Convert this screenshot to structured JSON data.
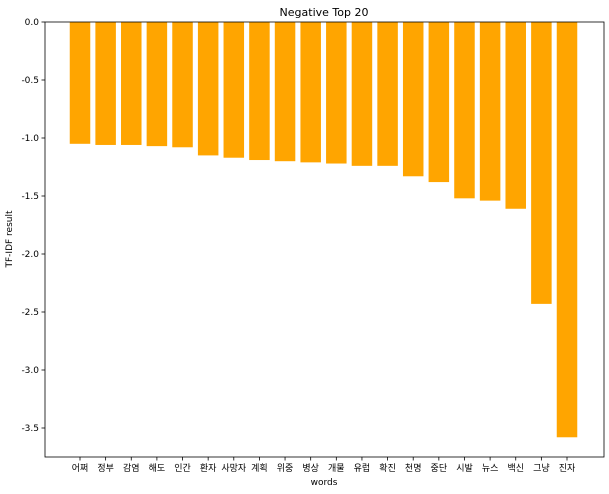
{
  "chart_data": {
    "type": "bar",
    "title": "Negative Top 20",
    "xlabel": "words",
    "ylabel": "TF-IDF result",
    "categories": [
      "어쩌",
      "정부",
      "감염",
      "해도",
      "인간",
      "환자",
      "사망자",
      "계획",
      "위중",
      "병상",
      "개물",
      "유럽",
      "확진",
      "천명",
      "중단",
      "시발",
      "뉴스",
      "백신",
      "그냥",
      "진자"
    ],
    "values": [
      -1.05,
      -1.06,
      -1.06,
      -1.07,
      -1.08,
      -1.15,
      -1.17,
      -1.19,
      -1.2,
      -1.21,
      -1.22,
      -1.24,
      -1.24,
      -1.33,
      -1.38,
      -1.52,
      -1.54,
      -1.61,
      -2.43,
      -3.58
    ],
    "ylim": [
      -3.75,
      0.0
    ],
    "yticks": [
      0.0,
      -0.5,
      -1.0,
      -1.5,
      -2.0,
      -2.5,
      -3.0,
      -3.5
    ],
    "ytick_labels": [
      "0.0",
      "-0.5",
      "-1.0",
      "-1.5",
      "-2.0",
      "-2.5",
      "-3.0",
      "-3.5"
    ],
    "bar_color": "#ffa500",
    "grid": false
  }
}
